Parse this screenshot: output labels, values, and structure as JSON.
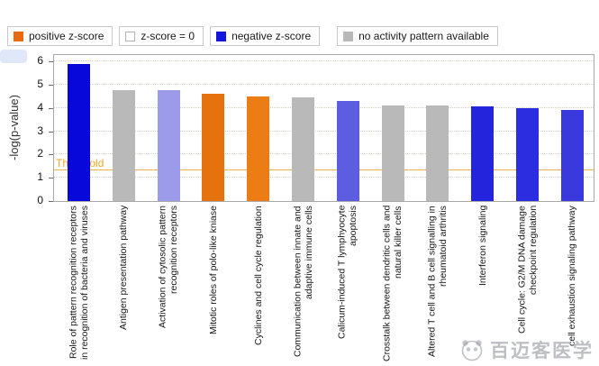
{
  "legend": {
    "items": [
      {
        "label": "positive z-score",
        "color": "#e8690e"
      },
      {
        "label": "z-score = 0",
        "color": "#ffffff"
      },
      {
        "label": "negative z-score",
        "color": "#1515dc"
      },
      {
        "label": "no activity pattern available",
        "color": "#b9b9b9"
      }
    ]
  },
  "chart_data": {
    "type": "bar",
    "title": "",
    "xlabel": "",
    "ylabel": "-log(p-value)",
    "ylim": [
      0,
      6.35
    ],
    "yticks": [
      0,
      1,
      2,
      3,
      4,
      5,
      6
    ],
    "grid": "horizontal-dotted",
    "legend_position": "top",
    "threshold": {
      "value": 1.3,
      "label": "Threshold",
      "color": "#f5a623"
    },
    "categories": [
      "Role of pattern recognition receptors in recognition of bacteria and viruses",
      "Antigen presentation pathway",
      "Activation of cytosolic pattern recognition receptors",
      "Mitotic roles of polo-like kniase",
      "Cyclines and cell cycle regulation",
      "Communication between innate and adaptive immune cells",
      "Calicum-induced T lymphyocyte apoptosis",
      "Crosstalk between dendritic cells and natural killer cells",
      "Altered T cell and B cell signalling in rheumatoid arthritis",
      "Interferon signaling",
      "Cell cycle: G2/M DNA damage checkpoint regulation",
      "cell exhaustion signaling pathway"
    ],
    "values": [
      5.9,
      4.75,
      4.75,
      4.6,
      4.5,
      4.45,
      4.3,
      4.1,
      4.1,
      4.05,
      4.0,
      3.9
    ],
    "bar_colors": [
      "#0808da",
      "#b9b9b9",
      "#9b9be9",
      "#e5720d",
      "#eb7d14",
      "#b9b9b9",
      "#5d5de2",
      "#b9b9b9",
      "#b9b9b9",
      "#2424dc",
      "#2c2ce0",
      "#3939de"
    ]
  },
  "watermark": {
    "text": "百迈客医学"
  }
}
